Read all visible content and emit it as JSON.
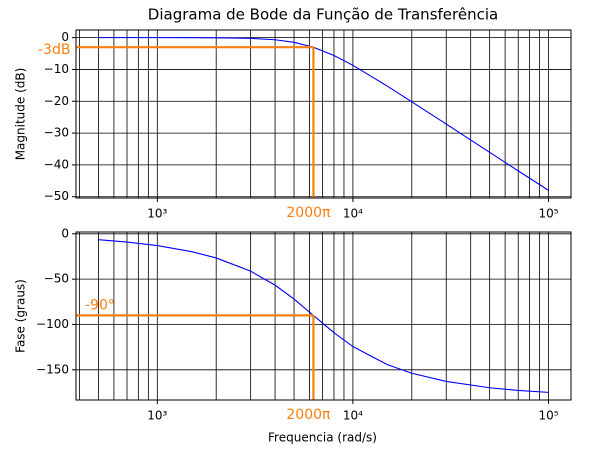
{
  "chart_data": [
    {
      "type": "line",
      "title": "Diagrama de Bode da Função de Transferência",
      "ylabel": "Magnitude (dB)",
      "x": [
        500,
        700,
        1000,
        1500,
        2000,
        3000,
        4000,
        5000,
        6283,
        8000,
        10000,
        15000,
        20000,
        30000,
        50000,
        70000,
        100000
      ],
      "series": [
        {
          "color": "#0000ff",
          "values": [
            0,
            0,
            0,
            -0.01,
            -0.04,
            -0.22,
            -0.66,
            -1.46,
            -3.01,
            -5.6,
            -8.7,
            -15.25,
            -20.16,
            -27.17,
            -36.03,
            -41.88,
            -48.0
          ]
        }
      ],
      "xlim": [
        384,
        130300
      ],
      "xscale": "log",
      "xticks": [
        {
          "value": 1000,
          "label": "10³"
        },
        {
          "value": 10000,
          "label": "10⁴"
        },
        {
          "value": 100000,
          "label": "10⁵"
        }
      ],
      "xminorticks": [
        400,
        500,
        600,
        700,
        800,
        900,
        2000,
        3000,
        4000,
        5000,
        6000,
        7000,
        8000,
        9000,
        20000,
        30000,
        40000,
        50000,
        60000,
        70000,
        80000,
        90000
      ],
      "ylim": [
        -50.4,
        2.4
      ],
      "yticks": [
        0,
        {
          "value": -10,
          "label": "−10"
        },
        {
          "value": -20,
          "label": "−20"
        },
        {
          "value": -30,
          "label": "−30"
        },
        {
          "value": -40,
          "label": "−40"
        },
        {
          "value": -50,
          "label": "−50"
        }
      ],
      "grid": true,
      "reference": {
        "x": 6283,
        "y": -3,
        "color": "#ff7f0e",
        "y_label": "-3dB",
        "x_label": "2000π"
      }
    },
    {
      "type": "line",
      "ylabel": "Fase (graus)",
      "xlabel": "Frequencia (rad/s)",
      "x": [
        500,
        700,
        1000,
        1500,
        2000,
        3000,
        4000,
        5000,
        6283,
        8000,
        10000,
        15000,
        20000,
        30000,
        50000,
        70000,
        100000
      ],
      "series": [
        {
          "color": "#0000ff",
          "values": [
            -6.5,
            -9.1,
            -13.0,
            -19.7,
            -26.6,
            -41.2,
            -56.6,
            -72.0,
            -90,
            -109.0,
            -124.3,
            -144.3,
            -153.8,
            -162.8,
            -169.8,
            -172.7,
            -174.9
          ]
        }
      ],
      "xlim": [
        384,
        130300
      ],
      "xscale": "log",
      "xticks": [
        {
          "value": 1000,
          "label": "10³"
        },
        {
          "value": 10000,
          "label": "10⁴"
        },
        {
          "value": 100000,
          "label": "10⁵"
        }
      ],
      "xminorticks": [
        400,
        500,
        600,
        700,
        800,
        900,
        2000,
        3000,
        4000,
        5000,
        6000,
        7000,
        8000,
        9000,
        20000,
        30000,
        40000,
        50000,
        60000,
        70000,
        80000,
        90000
      ],
      "ylim": [
        -183.3,
        2
      ],
      "yticks": [
        0,
        {
          "value": -50,
          "label": "−50"
        },
        {
          "value": -100,
          "label": "−100"
        },
        {
          "value": -150,
          "label": "−150"
        }
      ],
      "grid": true,
      "reference": {
        "x": 6283,
        "y": -90,
        "color": "#ff7f0e",
        "y_label": "-90°",
        "x_label": "2000π"
      }
    }
  ]
}
